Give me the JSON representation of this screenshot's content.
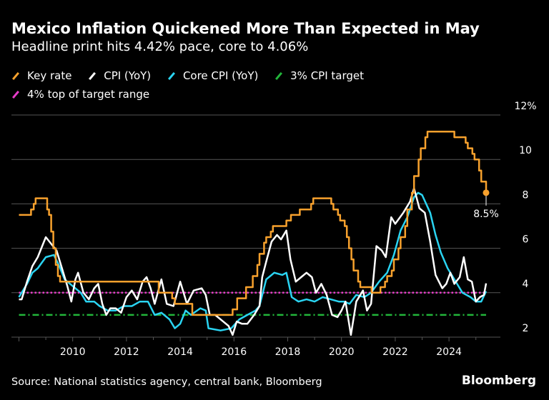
{
  "title": "Mexico Inflation Quickened More Than Expected in May",
  "subtitle": "Headline print hits 4.42% pace, core to 4.06%",
  "source": "Source: National statistics agency, central bank, Bloomberg",
  "logo": "Bloomberg",
  "colors": {
    "key_rate": "#f7a12d",
    "cpi": "#ffffff",
    "core": "#2ad4f2",
    "target3": "#22b53a",
    "target4": "#e83cc8",
    "grid": "#555555"
  },
  "chart_data": {
    "type": "line",
    "ylim": [
      2,
      12
    ],
    "xlim": [
      2007.7,
      2026.3
    ],
    "yticks": [
      {
        "v": 2,
        "label": "2"
      },
      {
        "v": 4,
        "label": "4"
      },
      {
        "v": 6,
        "label": "6"
      },
      {
        "v": 8,
        "label": "8"
      },
      {
        "v": 10,
        "label": "10"
      },
      {
        "v": 12,
        "label": "12%"
      }
    ],
    "xticks": [
      {
        "v": 2010,
        "label": "2010"
      },
      {
        "v": 2012,
        "label": "2012"
      },
      {
        "v": 2014,
        "label": "2014"
      },
      {
        "v": 2016,
        "label": "2016"
      },
      {
        "v": 2018,
        "label": "2018"
      },
      {
        "v": 2020,
        "label": "2020"
      },
      {
        "v": 2022,
        "label": "2022"
      },
      {
        "v": 2024,
        "label": "2024"
      }
    ],
    "grid": true,
    "legend_placement": "top",
    "end_label": "8.5%",
    "series": [
      {
        "name": "Key rate",
        "key": "key_rate",
        "step": true,
        "points": [
          [
            2008.0,
            7.5
          ],
          [
            2008.45,
            7.75
          ],
          [
            2008.55,
            8.0
          ],
          [
            2008.62,
            8.25
          ],
          [
            2009.05,
            7.75
          ],
          [
            2009.12,
            7.5
          ],
          [
            2009.2,
            6.75
          ],
          [
            2009.28,
            6.0
          ],
          [
            2009.37,
            5.25
          ],
          [
            2009.45,
            4.75
          ],
          [
            2009.53,
            4.5
          ],
          [
            2013.2,
            4.0
          ],
          [
            2013.7,
            3.75
          ],
          [
            2013.8,
            3.5
          ],
          [
            2014.45,
            3.0
          ],
          [
            2015.95,
            3.25
          ],
          [
            2016.12,
            3.75
          ],
          [
            2016.45,
            4.25
          ],
          [
            2016.7,
            4.75
          ],
          [
            2016.87,
            5.25
          ],
          [
            2016.95,
            5.75
          ],
          [
            2017.12,
            6.25
          ],
          [
            2017.2,
            6.5
          ],
          [
            2017.37,
            6.75
          ],
          [
            2017.45,
            7.0
          ],
          [
            2017.95,
            7.25
          ],
          [
            2018.12,
            7.5
          ],
          [
            2018.45,
            7.75
          ],
          [
            2018.87,
            8.0
          ],
          [
            2018.95,
            8.25
          ],
          [
            2019.62,
            8.0
          ],
          [
            2019.7,
            7.75
          ],
          [
            2019.87,
            7.5
          ],
          [
            2019.95,
            7.25
          ],
          [
            2020.12,
            7.0
          ],
          [
            2020.2,
            6.5
          ],
          [
            2020.28,
            6.0
          ],
          [
            2020.37,
            5.5
          ],
          [
            2020.45,
            5.0
          ],
          [
            2020.62,
            4.5
          ],
          [
            2020.7,
            4.25
          ],
          [
            2021.12,
            4.0
          ],
          [
            2021.45,
            4.25
          ],
          [
            2021.62,
            4.5
          ],
          [
            2021.7,
            4.75
          ],
          [
            2021.87,
            5.0
          ],
          [
            2021.95,
            5.5
          ],
          [
            2022.12,
            6.0
          ],
          [
            2022.2,
            6.5
          ],
          [
            2022.37,
            7.0
          ],
          [
            2022.45,
            7.75
          ],
          [
            2022.62,
            8.5
          ],
          [
            2022.7,
            9.25
          ],
          [
            2022.87,
            10.0
          ],
          [
            2022.95,
            10.5
          ],
          [
            2023.12,
            11.0
          ],
          [
            2023.2,
            11.25
          ],
          [
            2024.2,
            11.0
          ],
          [
            2024.62,
            10.75
          ],
          [
            2024.7,
            10.5
          ],
          [
            2024.87,
            10.25
          ],
          [
            2024.95,
            10.0
          ],
          [
            2025.12,
            9.5
          ],
          [
            2025.2,
            9.0
          ],
          [
            2025.38,
            8.5
          ]
        ]
      },
      {
        "name": "CPI (YoY)",
        "key": "cpi",
        "points": [
          [
            2008.0,
            3.7
          ],
          [
            2008.1,
            3.7
          ],
          [
            2008.3,
            4.5
          ],
          [
            2008.5,
            5.2
          ],
          [
            2008.7,
            5.6
          ],
          [
            2008.9,
            6.2
          ],
          [
            2009.0,
            6.5
          ],
          [
            2009.2,
            6.2
          ],
          [
            2009.4,
            5.9
          ],
          [
            2009.6,
            5.1
          ],
          [
            2009.8,
            4.3
          ],
          [
            2009.95,
            3.6
          ],
          [
            2010.1,
            4.6
          ],
          [
            2010.2,
            4.9
          ],
          [
            2010.4,
            4.0
          ],
          [
            2010.6,
            3.7
          ],
          [
            2010.8,
            4.2
          ],
          [
            2010.95,
            4.4
          ],
          [
            2011.1,
            3.5
          ],
          [
            2011.25,
            3.0
          ],
          [
            2011.4,
            3.3
          ],
          [
            2011.6,
            3.3
          ],
          [
            2011.8,
            3.1
          ],
          [
            2012.0,
            3.8
          ],
          [
            2012.2,
            4.1
          ],
          [
            2012.4,
            3.7
          ],
          [
            2012.6,
            4.5
          ],
          [
            2012.75,
            4.7
          ],
          [
            2012.9,
            4.2
          ],
          [
            2013.05,
            3.5
          ],
          [
            2013.3,
            4.6
          ],
          [
            2013.5,
            3.5
          ],
          [
            2013.75,
            3.4
          ],
          [
            2014.0,
            4.5
          ],
          [
            2014.25,
            3.5
          ],
          [
            2014.5,
            4.1
          ],
          [
            2014.8,
            4.2
          ],
          [
            2014.95,
            3.9
          ],
          [
            2015.1,
            3.0
          ],
          [
            2015.3,
            3.0
          ],
          [
            2015.6,
            2.7
          ],
          [
            2015.8,
            2.5
          ],
          [
            2015.95,
            2.1
          ],
          [
            2016.1,
            2.7
          ],
          [
            2016.3,
            2.6
          ],
          [
            2016.5,
            2.6
          ],
          [
            2016.75,
            3.0
          ],
          [
            2016.95,
            3.4
          ],
          [
            2017.05,
            4.7
          ],
          [
            2017.2,
            5.4
          ],
          [
            2017.4,
            6.3
          ],
          [
            2017.6,
            6.6
          ],
          [
            2017.75,
            6.4
          ],
          [
            2017.95,
            6.8
          ],
          [
            2018.1,
            5.5
          ],
          [
            2018.3,
            4.5
          ],
          [
            2018.5,
            4.7
          ],
          [
            2018.7,
            4.9
          ],
          [
            2018.9,
            4.7
          ],
          [
            2019.05,
            4.0
          ],
          [
            2019.25,
            4.4
          ],
          [
            2019.45,
            3.9
          ],
          [
            2019.65,
            3.0
          ],
          [
            2019.85,
            2.9
          ],
          [
            2020.0,
            3.2
          ],
          [
            2020.15,
            3.6
          ],
          [
            2020.35,
            2.1
          ],
          [
            2020.55,
            3.6
          ],
          [
            2020.8,
            4.1
          ],
          [
            2020.95,
            3.2
          ],
          [
            2021.1,
            3.5
          ],
          [
            2021.3,
            6.1
          ],
          [
            2021.5,
            5.9
          ],
          [
            2021.65,
            5.6
          ],
          [
            2021.85,
            7.4
          ],
          [
            2022.0,
            7.1
          ],
          [
            2022.3,
            7.6
          ],
          [
            2022.55,
            8.1
          ],
          [
            2022.7,
            8.7
          ],
          [
            2022.9,
            7.8
          ],
          [
            2023.1,
            7.6
          ],
          [
            2023.3,
            6.3
          ],
          [
            2023.5,
            4.8
          ],
          [
            2023.75,
            4.2
          ],
          [
            2023.9,
            4.4
          ],
          [
            2024.05,
            4.9
          ],
          [
            2024.2,
            4.4
          ],
          [
            2024.4,
            4.7
          ],
          [
            2024.55,
            5.6
          ],
          [
            2024.7,
            4.6
          ],
          [
            2024.85,
            4.5
          ],
          [
            2025.0,
            3.6
          ],
          [
            2025.15,
            3.8
          ],
          [
            2025.3,
            3.9
          ],
          [
            2025.38,
            4.42
          ]
        ]
      },
      {
        "name": "Core CPI (YoY)",
        "key": "core",
        "points": [
          [
            2008.0,
            3.8
          ],
          [
            2008.3,
            4.4
          ],
          [
            2008.5,
            4.9
          ],
          [
            2008.7,
            5.1
          ],
          [
            2009.0,
            5.6
          ],
          [
            2009.3,
            5.7
          ],
          [
            2009.5,
            5.2
          ],
          [
            2009.7,
            4.6
          ],
          [
            2010.0,
            4.3
          ],
          [
            2010.3,
            4.0
          ],
          [
            2010.5,
            3.6
          ],
          [
            2010.8,
            3.6
          ],
          [
            2011.0,
            3.4
          ],
          [
            2011.3,
            3.2
          ],
          [
            2011.6,
            3.2
          ],
          [
            2011.9,
            3.4
          ],
          [
            2012.2,
            3.4
          ],
          [
            2012.5,
            3.6
          ],
          [
            2012.8,
            3.6
          ],
          [
            2013.05,
            3.0
          ],
          [
            2013.3,
            3.1
          ],
          [
            2013.6,
            2.8
          ],
          [
            2013.8,
            2.4
          ],
          [
            2014.0,
            2.6
          ],
          [
            2014.2,
            3.2
          ],
          [
            2014.4,
            3.0
          ],
          [
            2014.75,
            3.3
          ],
          [
            2014.95,
            3.2
          ],
          [
            2015.05,
            2.4
          ],
          [
            2015.5,
            2.3
          ],
          [
            2015.9,
            2.4
          ],
          [
            2016.2,
            2.8
          ],
          [
            2016.5,
            3.0
          ],
          [
            2016.8,
            3.2
          ],
          [
            2016.95,
            3.4
          ],
          [
            2017.2,
            4.6
          ],
          [
            2017.5,
            4.9
          ],
          [
            2017.8,
            4.8
          ],
          [
            2017.95,
            4.9
          ],
          [
            2018.15,
            3.8
          ],
          [
            2018.4,
            3.6
          ],
          [
            2018.7,
            3.7
          ],
          [
            2019.0,
            3.6
          ],
          [
            2019.3,
            3.8
          ],
          [
            2019.6,
            3.7
          ],
          [
            2019.9,
            3.6
          ],
          [
            2020.1,
            3.6
          ],
          [
            2020.3,
            3.5
          ],
          [
            2020.55,
            3.9
          ],
          [
            2020.85,
            3.8
          ],
          [
            2021.1,
            4.0
          ],
          [
            2021.4,
            4.5
          ],
          [
            2021.7,
            4.9
          ],
          [
            2021.95,
            5.7
          ],
          [
            2022.2,
            6.8
          ],
          [
            2022.45,
            7.4
          ],
          [
            2022.7,
            8.3
          ],
          [
            2022.85,
            8.5
          ],
          [
            2023.0,
            8.4
          ],
          [
            2023.3,
            7.6
          ],
          [
            2023.5,
            6.6
          ],
          [
            2023.7,
            5.8
          ],
          [
            2023.95,
            5.1
          ],
          [
            2024.2,
            4.6
          ],
          [
            2024.5,
            4.0
          ],
          [
            2024.8,
            3.8
          ],
          [
            2025.0,
            3.6
          ],
          [
            2025.2,
            3.6
          ],
          [
            2025.38,
            4.06
          ]
        ]
      },
      {
        "name": "3% CPI target",
        "key": "target3",
        "constant": 3
      },
      {
        "name": "4% top of target range",
        "key": "target4",
        "constant": 4
      }
    ]
  }
}
